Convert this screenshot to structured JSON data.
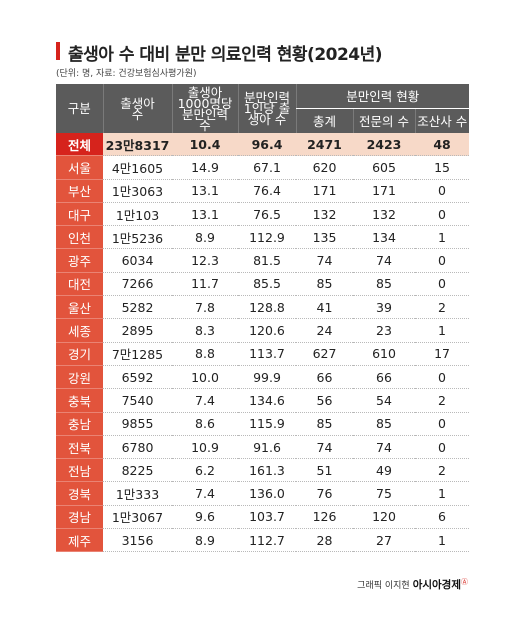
{
  "title": "출생아 수 대비 분만 의료인력 현황(2024년)",
  "subtitle": "(단위: 명, 자료: 건강보험심사평가원)",
  "headers": {
    "region": "구분",
    "births": "출생아 수",
    "per1000": "출생아 1000명당 분만인력 수",
    "perStaff": "분만인력 1인당 출생아 수",
    "staffGroup": "분만인력 현황",
    "total": "총계",
    "specialist": "전문의 수",
    "midwife": "조산사 수"
  },
  "rows": [
    {
      "region": "전체",
      "births": "23만8317",
      "per1000": "10.4",
      "perStaff": "96.4",
      "total": "2471",
      "specialist": "2423",
      "midwife": "48"
    },
    {
      "region": "서울",
      "births": "4만1605",
      "per1000": "14.9",
      "perStaff": "67.1",
      "total": "620",
      "specialist": "605",
      "midwife": "15"
    },
    {
      "region": "부산",
      "births": "1만3063",
      "per1000": "13.1",
      "perStaff": "76.4",
      "total": "171",
      "specialist": "171",
      "midwife": "0"
    },
    {
      "region": "대구",
      "births": "1만103",
      "per1000": "13.1",
      "perStaff": "76.5",
      "total": "132",
      "specialist": "132",
      "midwife": "0"
    },
    {
      "region": "인천",
      "births": "1만5236",
      "per1000": "8.9",
      "perStaff": "112.9",
      "total": "135",
      "specialist": "134",
      "midwife": "1"
    },
    {
      "region": "광주",
      "births": "6034",
      "per1000": "12.3",
      "perStaff": "81.5",
      "total": "74",
      "specialist": "74",
      "midwife": "0"
    },
    {
      "region": "대전",
      "births": "7266",
      "per1000": "11.7",
      "perStaff": "85.5",
      "total": "85",
      "specialist": "85",
      "midwife": "0"
    },
    {
      "region": "울산",
      "births": "5282",
      "per1000": "7.8",
      "perStaff": "128.8",
      "total": "41",
      "specialist": "39",
      "midwife": "2"
    },
    {
      "region": "세종",
      "births": "2895",
      "per1000": "8.3",
      "perStaff": "120.6",
      "total": "24",
      "specialist": "23",
      "midwife": "1"
    },
    {
      "region": "경기",
      "births": "7만1285",
      "per1000": "8.8",
      "perStaff": "113.7",
      "total": "627",
      "specialist": "610",
      "midwife": "17"
    },
    {
      "region": "강원",
      "births": "6592",
      "per1000": "10.0",
      "perStaff": "99.9",
      "total": "66",
      "specialist": "66",
      "midwife": "0"
    },
    {
      "region": "충북",
      "births": "7540",
      "per1000": "7.4",
      "perStaff": "134.6",
      "total": "56",
      "specialist": "54",
      "midwife": "2"
    },
    {
      "region": "충남",
      "births": "9855",
      "per1000": "8.6",
      "perStaff": "115.9",
      "total": "85",
      "specialist": "85",
      "midwife": "0"
    },
    {
      "region": "전북",
      "births": "6780",
      "per1000": "10.9",
      "perStaff": "91.6",
      "total": "74",
      "specialist": "74",
      "midwife": "0"
    },
    {
      "region": "전남",
      "births": "8225",
      "per1000": "6.2",
      "perStaff": "161.3",
      "total": "51",
      "specialist": "49",
      "midwife": "2"
    },
    {
      "region": "경북",
      "births": "1만333",
      "per1000": "7.4",
      "perStaff": "136.0",
      "total": "76",
      "specialist": "75",
      "midwife": "1"
    },
    {
      "region": "경남",
      "births": "1만3067",
      "per1000": "9.6",
      "perStaff": "103.7",
      "total": "126",
      "specialist": "120",
      "midwife": "6"
    },
    {
      "region": "제주",
      "births": "3156",
      "per1000": "8.9",
      "perStaff": "112.7",
      "total": "28",
      "specialist": "27",
      "midwife": "1"
    }
  ],
  "credit": {
    "prefix": "그래픽 이지현",
    "brand": "아시아경제",
    "mark": "Ⓐ"
  },
  "colors": {
    "accent": "#d6231c",
    "regionCell": "#e2543c",
    "header": "#5b5b5b",
    "totalRow": "#f7d9c8"
  }
}
